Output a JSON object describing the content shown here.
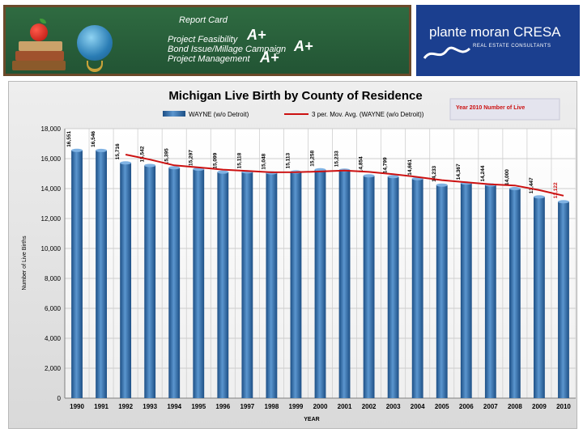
{
  "header": {
    "report_title": "Report Card",
    "items": [
      "Project Feasibility",
      "Bond Issue/Millage Campaign",
      "Project Management"
    ],
    "grade": "A+",
    "brand_name": "plante moran CRESA",
    "brand_subtitle": "REAL ESTATE CONSULTANTS"
  },
  "chart_data": {
    "type": "bar",
    "title": "Michigan Live Birth by County of Residence",
    "categories": [
      "1990",
      "1991",
      "1992",
      "1993",
      "1994",
      "1995",
      "1996",
      "1997",
      "1998",
      "1999",
      "2000",
      "2001",
      "2002",
      "2003",
      "2004",
      "2005",
      "2006",
      "2007",
      "2008",
      "2009",
      "2010"
    ],
    "series": [
      {
        "name": "WAYNE (w/o Detroit)",
        "type": "bar",
        "color": "#2d6aa8",
        "values": [
          16551,
          16546,
          15716,
          15542,
          15395,
          15297,
          15099,
          15118,
          15048,
          15113,
          15258,
          15233,
          14854,
          14799,
          14661,
          14233,
          14367,
          14244,
          14000,
          13447,
          13122
        ]
      },
      {
        "name": "3 per. Mov. Avg. (WAYNE (w/o Detroit))",
        "type": "line",
        "color": "#cc1111",
        "values": [
          null,
          null,
          16271,
          15935,
          15551,
          15411,
          15264,
          15171,
          15088,
          15093,
          15140,
          15201,
          15115,
          14962,
          14771,
          14564,
          14420,
          14281,
          14204,
          13897,
          13523
        ]
      }
    ],
    "data_labels": [
      "16,551",
      "16,546",
      "15,716",
      "15,542",
      "15,395",
      "15,297",
      "15,099",
      "15,118",
      "15,048",
      "15,113",
      "15,258",
      "15,233",
      "14,854",
      "14,799",
      "14,661",
      "14,233",
      "14,367",
      "14,244",
      "14,000",
      "13,447",
      "13,122"
    ],
    "last_label_color": "#cc1111",
    "ylim": [
      0,
      18000
    ],
    "yticks": [
      0,
      2000,
      4000,
      6000,
      8000,
      10000,
      12000,
      14000,
      16000,
      18000
    ],
    "ytick_labels": [
      "0",
      "2,000",
      "4,000",
      "6,000",
      "8,000",
      "10,000",
      "12,000",
      "14,000",
      "16,000",
      "18,000"
    ],
    "xlabel": "YEAR",
    "ylabel": "Number of Live Births",
    "annotation": "Year 2010 Number of Live",
    "grid": true,
    "legend_position": "top"
  }
}
